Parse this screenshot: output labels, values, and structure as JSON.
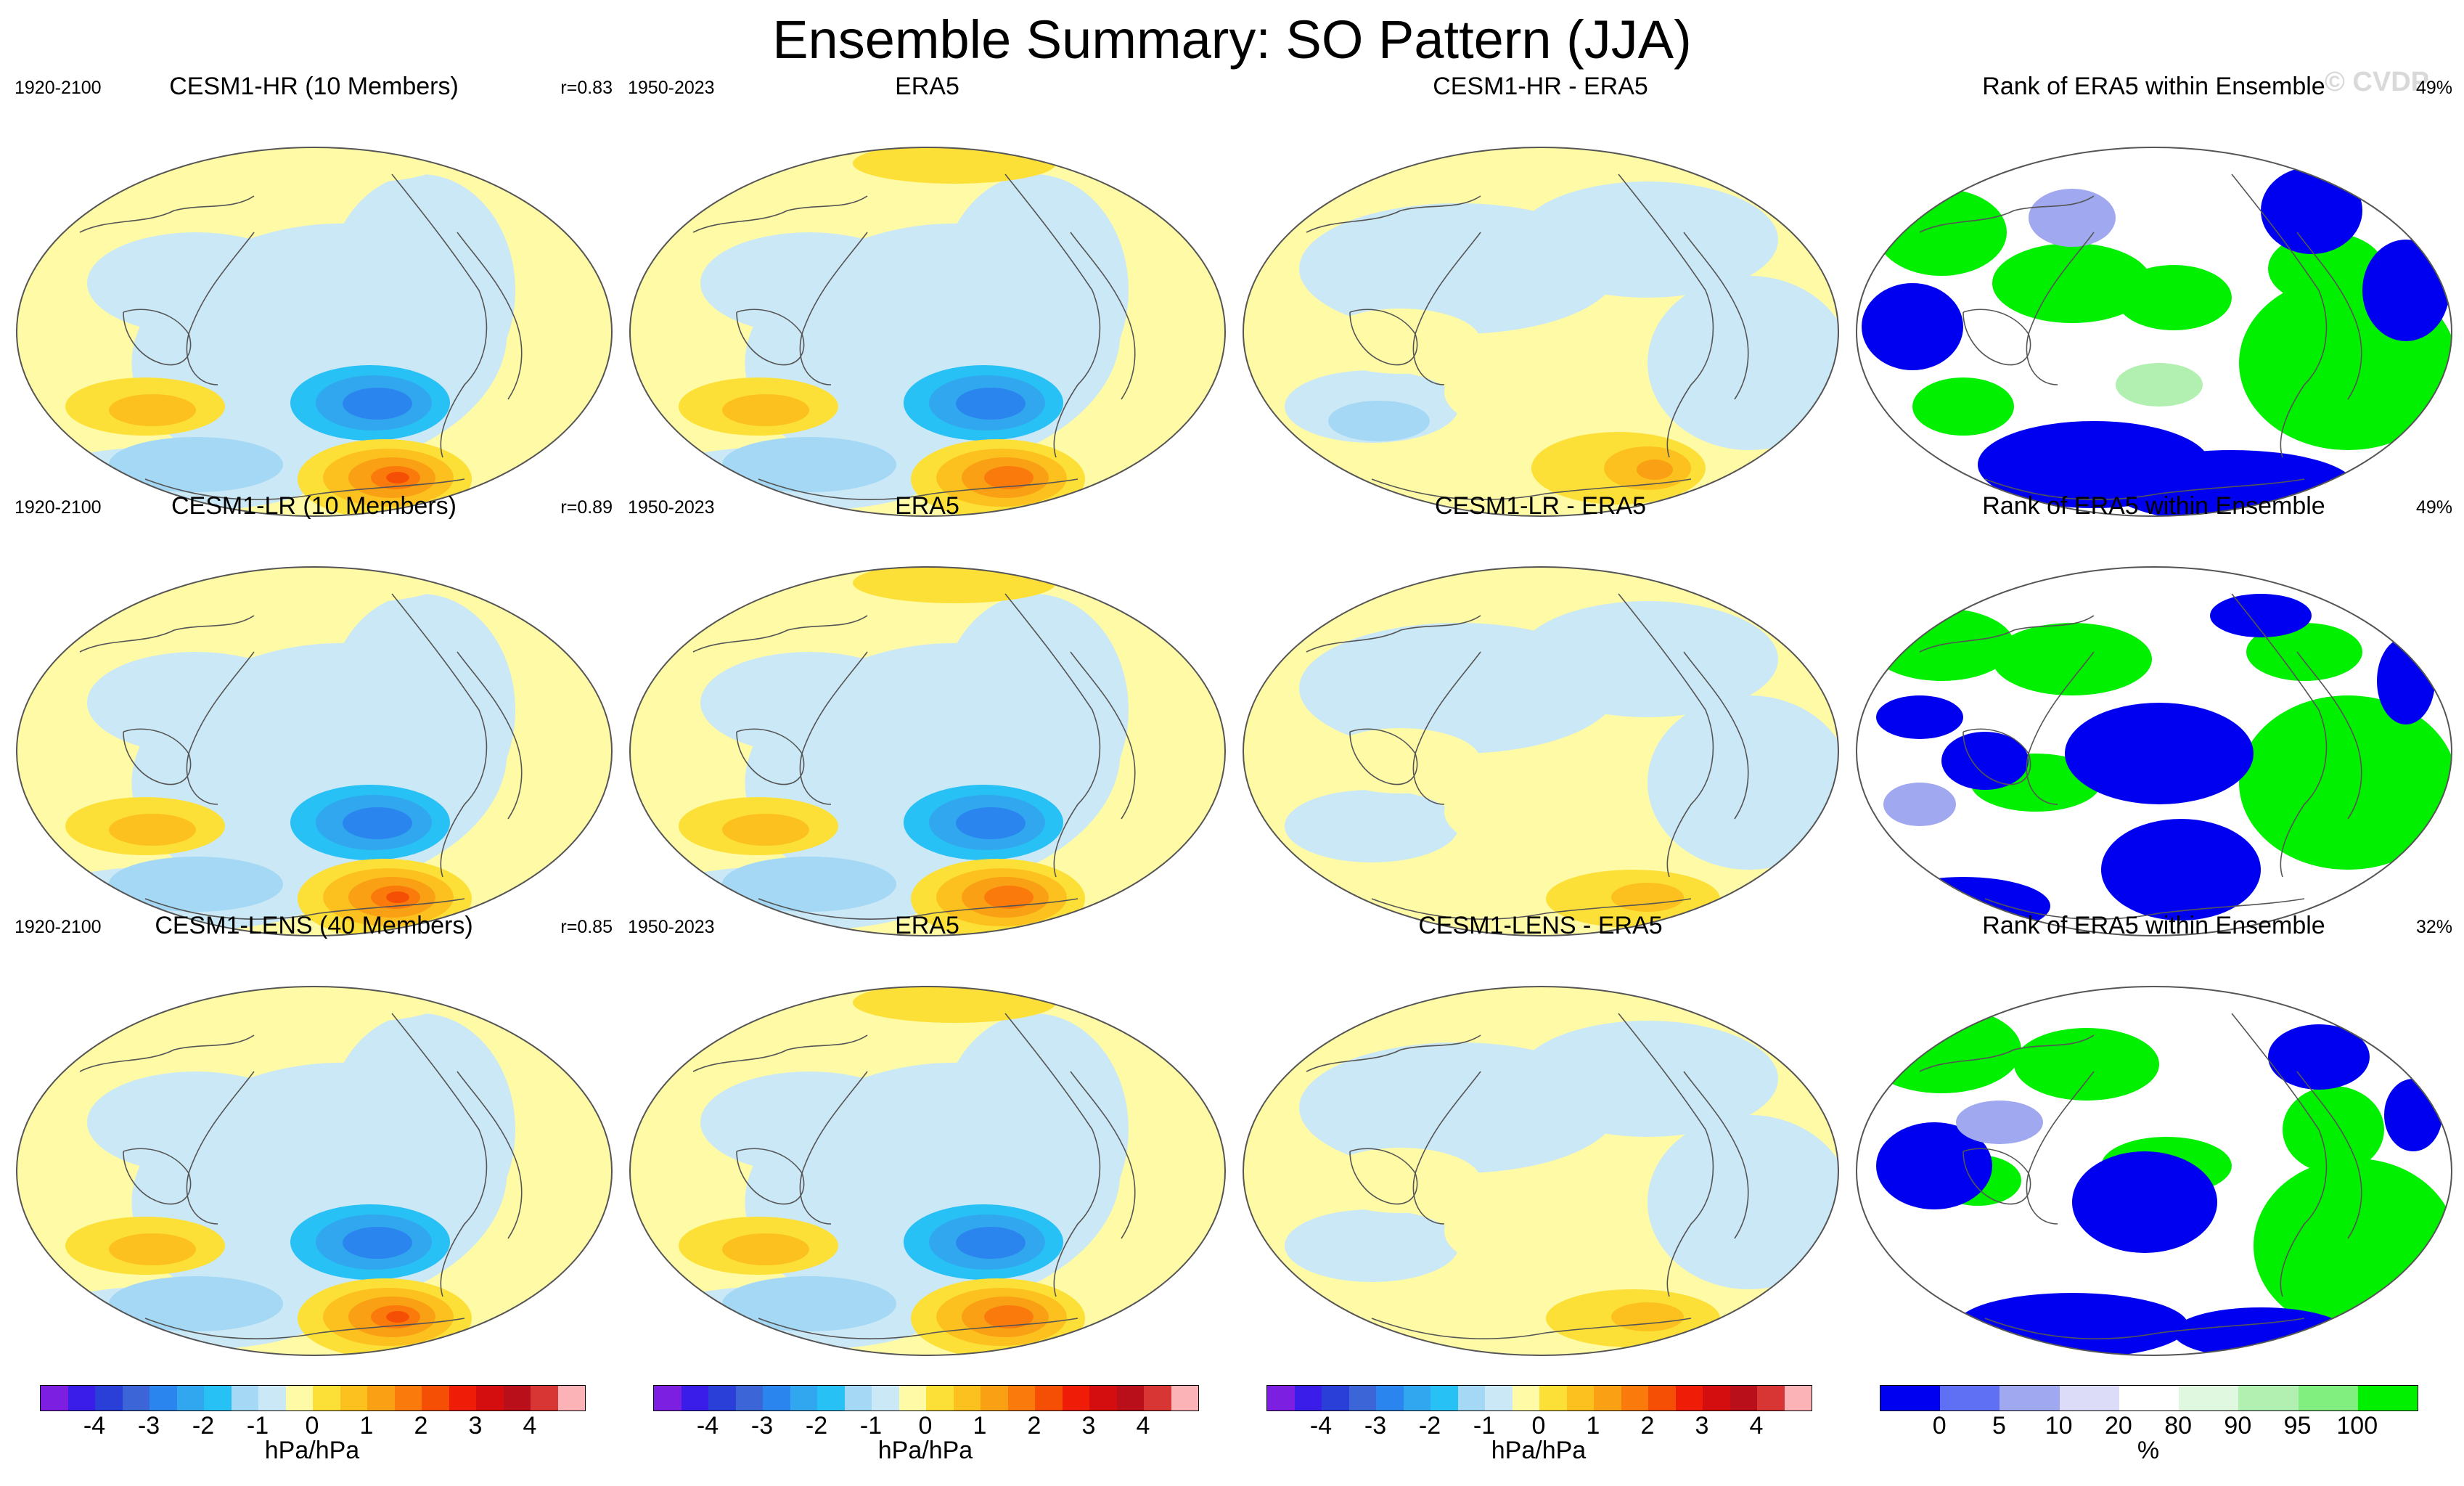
{
  "title": "Ensemble Summary: SO Pattern (JJA)",
  "watermark": "© CVDP",
  "colorbar_pressure": {
    "colors": [
      "#7d1fe0",
      "#3a1de8",
      "#2a3fd8",
      "#3c66d8",
      "#2a86ee",
      "#31a7ef",
      "#28c1f5",
      "#a4d8f4",
      "#cbe8f6",
      "#fffaa6",
      "#fde037",
      "#fcc11e",
      "#f9a015",
      "#fa7b0c",
      "#f54f05",
      "#ef1d08",
      "#d40e0f",
      "#b90f1a",
      "#d83535",
      "#fbb3b8"
    ],
    "ticks": [
      "-4",
      "-3",
      "-2",
      "-1",
      "0",
      "1",
      "2",
      "3",
      "4"
    ],
    "unit": "hPa/hPa"
  },
  "colorbar_rank": {
    "colors": [
      "#0000f0",
      "#6070f5",
      "#a0a8f0",
      "#dcdcf8",
      "#ffffff",
      "#e0f8e0",
      "#b2f0b2",
      "#80ef80",
      "#00f000"
    ],
    "ticks": [
      "0",
      "5",
      "10",
      "20",
      "80",
      "90",
      "95",
      "100"
    ],
    "unit": "%"
  },
  "rows": [
    {
      "panels": [
        {
          "kind": "model",
          "title": "CESM1-HR (10 Members)",
          "left": "1920-2100",
          "right": "r=0.83"
        },
        {
          "kind": "obs",
          "title": "ERA5",
          "left": "1950-2023",
          "right": ""
        },
        {
          "kind": "diff",
          "title": "CESM1-HR - ERA5",
          "left": "",
          "right": ""
        },
        {
          "kind": "rank",
          "title": "Rank of ERA5 within Ensemble",
          "left": "",
          "right": "49%"
        }
      ]
    },
    {
      "panels": [
        {
          "kind": "model",
          "title": "CESM1-LR (10 Members)",
          "left": "1920-2100",
          "right": "r=0.89"
        },
        {
          "kind": "obs",
          "title": "ERA5",
          "left": "1950-2023",
          "right": ""
        },
        {
          "kind": "diff",
          "title": "CESM1-LR - ERA5",
          "left": "",
          "right": ""
        },
        {
          "kind": "rank",
          "title": "Rank of ERA5 within Ensemble",
          "left": "",
          "right": "49%"
        }
      ]
    },
    {
      "panels": [
        {
          "kind": "model",
          "title": "CESM1-LENS (40 Members)",
          "left": "1920-2100",
          "right": "r=0.85"
        },
        {
          "kind": "obs",
          "title": "ERA5",
          "left": "1950-2023",
          "right": ""
        },
        {
          "kind": "diff",
          "title": "CESM1-LENS - ERA5",
          "left": "",
          "right": ""
        },
        {
          "kind": "rank",
          "title": "Rank of ERA5 within Ensemble",
          "left": "",
          "right": "32%"
        }
      ]
    }
  ],
  "chart_data": [
    {
      "type": "heatmap",
      "title": "CESM1-HR (10 Members)",
      "subtitle_left": "1920-2100",
      "subtitle_right": "r=0.83",
      "colorbar": "hPa/hPa",
      "range": [
        -4,
        4
      ]
    },
    {
      "type": "heatmap",
      "title": "ERA5",
      "subtitle_left": "1950-2023",
      "colorbar": "hPa/hPa",
      "range": [
        -4,
        4
      ]
    },
    {
      "type": "heatmap",
      "title": "CESM1-HR - ERA5",
      "colorbar": "hPa/hPa",
      "range": [
        -4,
        4
      ]
    },
    {
      "type": "heatmap",
      "title": "Rank of ERA5 within Ensemble",
      "subtitle_right": "49%",
      "colorbar": "%",
      "range": [
        0,
        100
      ]
    },
    {
      "type": "heatmap",
      "title": "CESM1-LR (10 Members)",
      "subtitle_left": "1920-2100",
      "subtitle_right": "r=0.89",
      "colorbar": "hPa/hPa",
      "range": [
        -4,
        4
      ]
    },
    {
      "type": "heatmap",
      "title": "ERA5",
      "subtitle_left": "1950-2023",
      "colorbar": "hPa/hPa",
      "range": [
        -4,
        4
      ]
    },
    {
      "type": "heatmap",
      "title": "CESM1-LR - ERA5",
      "colorbar": "hPa/hPa",
      "range": [
        -4,
        4
      ]
    },
    {
      "type": "heatmap",
      "title": "Rank of ERA5 within Ensemble",
      "subtitle_right": "49%",
      "colorbar": "%",
      "range": [
        0,
        100
      ]
    },
    {
      "type": "heatmap",
      "title": "CESM1-LENS (40 Members)",
      "subtitle_left": "1920-2100",
      "subtitle_right": "r=0.85",
      "colorbar": "hPa/hPa",
      "range": [
        -4,
        4
      ]
    },
    {
      "type": "heatmap",
      "title": "ERA5",
      "subtitle_left": "1950-2023",
      "colorbar": "hPa/hPa",
      "range": [
        -4,
        4
      ]
    },
    {
      "type": "heatmap",
      "title": "CESM1-LENS - ERA5",
      "colorbar": "hPa/hPa",
      "range": [
        -4,
        4
      ]
    },
    {
      "type": "heatmap",
      "title": "Rank of ERA5 within Ensemble",
      "subtitle_right": "32%",
      "colorbar": "%",
      "range": [
        0,
        100
      ]
    }
  ]
}
